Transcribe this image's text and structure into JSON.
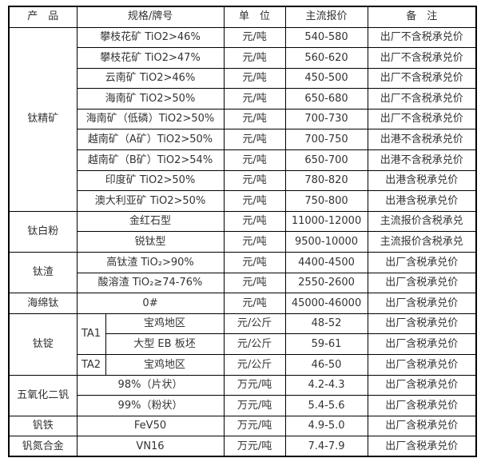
{
  "colors": {
    "border": "#000000",
    "text": "#333333",
    "background": "#ffffff"
  },
  "table": {
    "columns": [
      "产　品",
      "规格/牌号",
      "单　位",
      "主流报价",
      "备　注"
    ],
    "groups": [
      {
        "product": "钛精矿",
        "rows": [
          {
            "spec": "攀枝花矿 TiO2>46%",
            "unit": "元/吨",
            "price": "540-580",
            "note": "出厂不含税承兑价"
          },
          {
            "spec": "攀枝花矿 TiO2>47%",
            "unit": "元/吨",
            "price": "560-620",
            "note": "出厂不含税承兑价"
          },
          {
            "spec": "云南矿 TiO2>46%",
            "unit": "元/吨",
            "price": "450-500",
            "note": "出厂不含税承兑价"
          },
          {
            "spec": "海南矿 TiO2>50%",
            "unit": "元/吨",
            "price": "650-680",
            "note": "出厂不含税承兑价"
          },
          {
            "spec": "海南矿（低磷）TiO2>50%",
            "unit": "元/吨",
            "price": "700-730",
            "note": "出厂不含税承兑价"
          },
          {
            "spec": "越南矿（A矿）TiO2>50%",
            "unit": "元/吨",
            "price": "700-750",
            "note": "出港不含税承兑价"
          },
          {
            "spec": "越南矿（B矿）TiO2>54%",
            "unit": "元/吨",
            "price": "650-700",
            "note": "出港不含税承兑价"
          },
          {
            "spec": "印度矿 TiO2>50%",
            "unit": "元/吨",
            "price": "780-820",
            "note": "出港含税承兑价"
          },
          {
            "spec": "澳大利亚矿 TiO2>50%",
            "unit": "元/吨",
            "price": "750-800",
            "note": "出港含税承兑价"
          }
        ]
      },
      {
        "product": "钛白粉",
        "rows": [
          {
            "spec": "金红石型",
            "unit": "元/吨",
            "price": "11000-12000",
            "note": "主流报价含税承兑"
          },
          {
            "spec": "锐钛型",
            "unit": "元/吨",
            "price": "9500-10000",
            "note": "主流报价含税承兑"
          }
        ]
      },
      {
        "product": "钛渣",
        "rows": [
          {
            "spec": "高钛渣 TiO₂>90%",
            "unit": "元/吨",
            "price": "4400-4500",
            "note": "出厂含税承兑价"
          },
          {
            "spec": "酸溶渣 TiO₂≥74-76%",
            "unit": "元/吨",
            "price": "2550-2600",
            "note": "出厂含税承兑价"
          }
        ]
      },
      {
        "product": "海绵钛",
        "rows": [
          {
            "spec": "0#",
            "unit": "元/吨",
            "price": "45000-46000",
            "note": "出厂含税承兑价"
          }
        ]
      },
      {
        "product": "钛锭",
        "rows": [
          {
            "grade": "TA1",
            "spec": "宝鸡地区",
            "unit": "元/公斤",
            "price": "48-52",
            "note": "出厂含税承兑价"
          },
          {
            "spec": "大型 EB 板坯",
            "unit": "元/公斤",
            "price": "59-61",
            "note": "出厂含税承兑价"
          },
          {
            "grade": "TA2",
            "spec": "宝鸡地区",
            "unit": "元/公斤",
            "price": "46-50",
            "note": "出厂含税承兑价"
          }
        ]
      },
      {
        "product": "五氧化二钒",
        "rows": [
          {
            "spec": "98%（片状）",
            "unit": "万元/吨",
            "price": "4.2-4.3",
            "note": "出厂含税承兑价"
          },
          {
            "spec": "99%（粉状）",
            "unit": "万元/吨",
            "price": "5.4-5.6",
            "note": "出厂含税承兑价"
          }
        ]
      },
      {
        "product": "钒铁",
        "rows": [
          {
            "spec": "FeV50",
            "unit": "万元/吨",
            "price": "4.9-5.0",
            "note": "出厂含税承兑价"
          }
        ]
      },
      {
        "product": "钒氮合金",
        "rows": [
          {
            "spec": "VN16",
            "unit": "万元/吨",
            "price": "7.4-7.9",
            "note": "出厂含税承兑价"
          }
        ]
      }
    ]
  }
}
